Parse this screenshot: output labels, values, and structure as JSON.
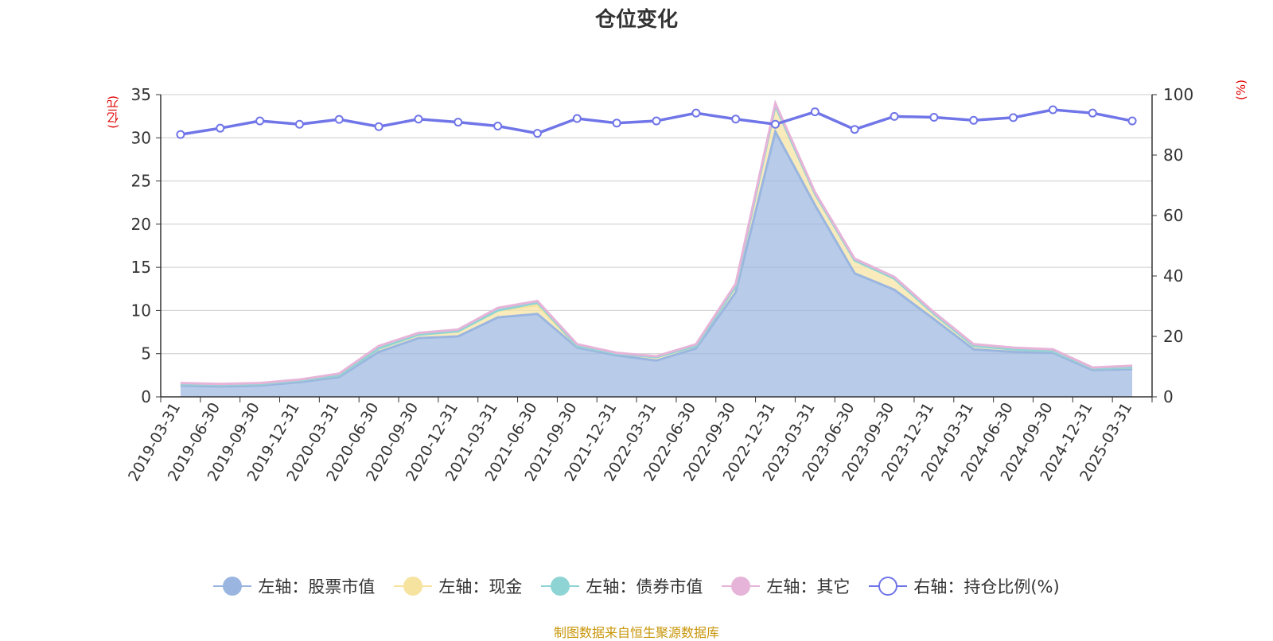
{
  "chart_data": {
    "type": "area",
    "title": "仓位变化",
    "left_unit": "(亿元)",
    "right_unit": "(%)",
    "x": [
      "2019-03-31",
      "2019-06-30",
      "2019-09-30",
      "2019-12-31",
      "2020-03-31",
      "2020-06-30",
      "2020-09-30",
      "2020-12-31",
      "2021-03-31",
      "2021-06-30",
      "2021-09-30",
      "2021-12-31",
      "2022-03-31",
      "2022-06-30",
      "2022-09-30",
      "2022-12-31",
      "2023-03-31",
      "2023-06-30",
      "2023-09-30",
      "2023-12-31",
      "2024-03-31",
      "2024-06-30",
      "2024-09-30",
      "2024-12-31",
      "2025-03-31"
    ],
    "ylim_left": [
      0,
      35
    ],
    "yticks_left": [
      0,
      5,
      10,
      15,
      20,
      25,
      30,
      35
    ],
    "ylim_right": [
      0,
      100
    ],
    "yticks_right": [
      0,
      20,
      40,
      60,
      80,
      100
    ],
    "grid": true,
    "legend_position": "bottom",
    "series": [
      {
        "name": "左轴：股票市值",
        "axis": "left",
        "kind": "stacked-area",
        "color": "#9ab6e0",
        "values": [
          1.3,
          1.2,
          1.3,
          1.7,
          2.3,
          5.2,
          6.8,
          7.0,
          9.2,
          9.6,
          5.7,
          4.8,
          4.2,
          5.6,
          12.1,
          30.7,
          22.2,
          14.3,
          12.4,
          9.0,
          5.5,
          5.2,
          5.1,
          3.1,
          3.2
        ]
      },
      {
        "name": "左轴：现金",
        "axis": "left",
        "kind": "stacked-area",
        "color": "#f7e3a0",
        "values": [
          0.2,
          0.2,
          0.2,
          0.2,
          0.2,
          0.4,
          0.4,
          0.6,
          0.8,
          1.0,
          0.2,
          0.2,
          0.4,
          0.3,
          0.7,
          3.0,
          1.3,
          1.5,
          1.3,
          0.6,
          0.4,
          0.3,
          0.2,
          0.2,
          0.2
        ]
      },
      {
        "name": "左轴：债券市值",
        "axis": "left",
        "kind": "stacked-area",
        "color": "#8fd4d4",
        "values": [
          0,
          0,
          0,
          0,
          0,
          0,
          0,
          0,
          0,
          0.3,
          0,
          0,
          0,
          0,
          0,
          0,
          0,
          0,
          0,
          0,
          0,
          0,
          0,
          0,
          0
        ]
      },
      {
        "name": "左轴：其它",
        "axis": "left",
        "kind": "stacked-area",
        "color": "#e6b4d8",
        "values": [
          0.1,
          0.1,
          0.1,
          0.1,
          0.2,
          0.3,
          0.2,
          0.2,
          0.3,
          0.2,
          0.2,
          0.1,
          0.1,
          0.2,
          0.3,
          0.3,
          0.2,
          0.2,
          0.2,
          0.2,
          0.2,
          0.2,
          0.2,
          0.1,
          0.2
        ]
      },
      {
        "name": "右轴：持仓比例(%)",
        "axis": "right",
        "kind": "line",
        "color": "#7075e8",
        "values": [
          86.8,
          88.9,
          91.3,
          90.2,
          91.8,
          89.4,
          91.9,
          90.9,
          89.6,
          87.2,
          92.1,
          90.6,
          91.3,
          93.9,
          91.9,
          90.2,
          94.3,
          88.5,
          92.8,
          92.5,
          91.5,
          92.4,
          95.0,
          93.9,
          91.3
        ]
      }
    ]
  },
  "source_text": "制图数据来自恒生聚源数据库"
}
